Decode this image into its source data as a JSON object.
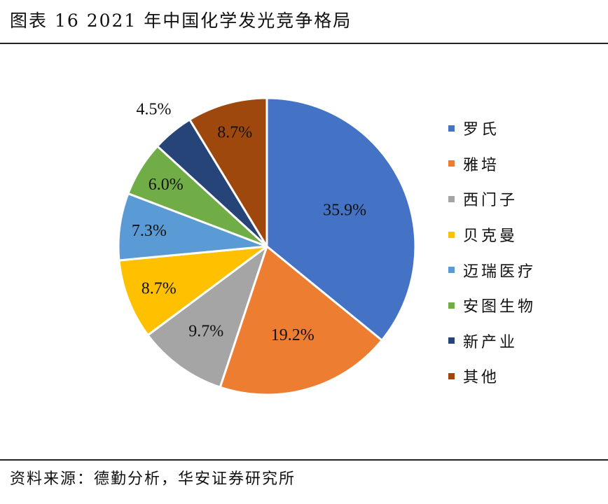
{
  "title": "图表 16 2021 年中国化学发光竞争格局",
  "source": "资料来源：德勤分析，华安证券研究所",
  "chart_data": {
    "type": "pie",
    "title": "",
    "start_angle_deg": 90,
    "direction": "clockwise",
    "legend_position": "right",
    "slice_border_color": "#ffffff",
    "slices": [
      {
        "label": "罗氏",
        "value": 35.9,
        "display": "35.9%",
        "color": "#4472C4"
      },
      {
        "label": "雅培",
        "value": 19.2,
        "display": "19.2%",
        "color": "#ED7D31"
      },
      {
        "label": "西门子",
        "value": 9.7,
        "display": "9.7%",
        "color": "#A5A5A5"
      },
      {
        "label": "贝克曼",
        "value": 8.7,
        "display": "8.7%",
        "color": "#FFC000"
      },
      {
        "label": "迈瑞医疗",
        "value": 7.3,
        "display": "7.3%",
        "color": "#5B9BD5"
      },
      {
        "label": "安图生物",
        "value": 6.0,
        "display": "6.0%",
        "color": "#70AD47"
      },
      {
        "label": "新产业",
        "value": 4.5,
        "display": "4.5%",
        "color": "#264478"
      },
      {
        "label": "其他",
        "value": 8.7,
        "display": "8.7%",
        "color": "#9E480E"
      }
    ]
  }
}
